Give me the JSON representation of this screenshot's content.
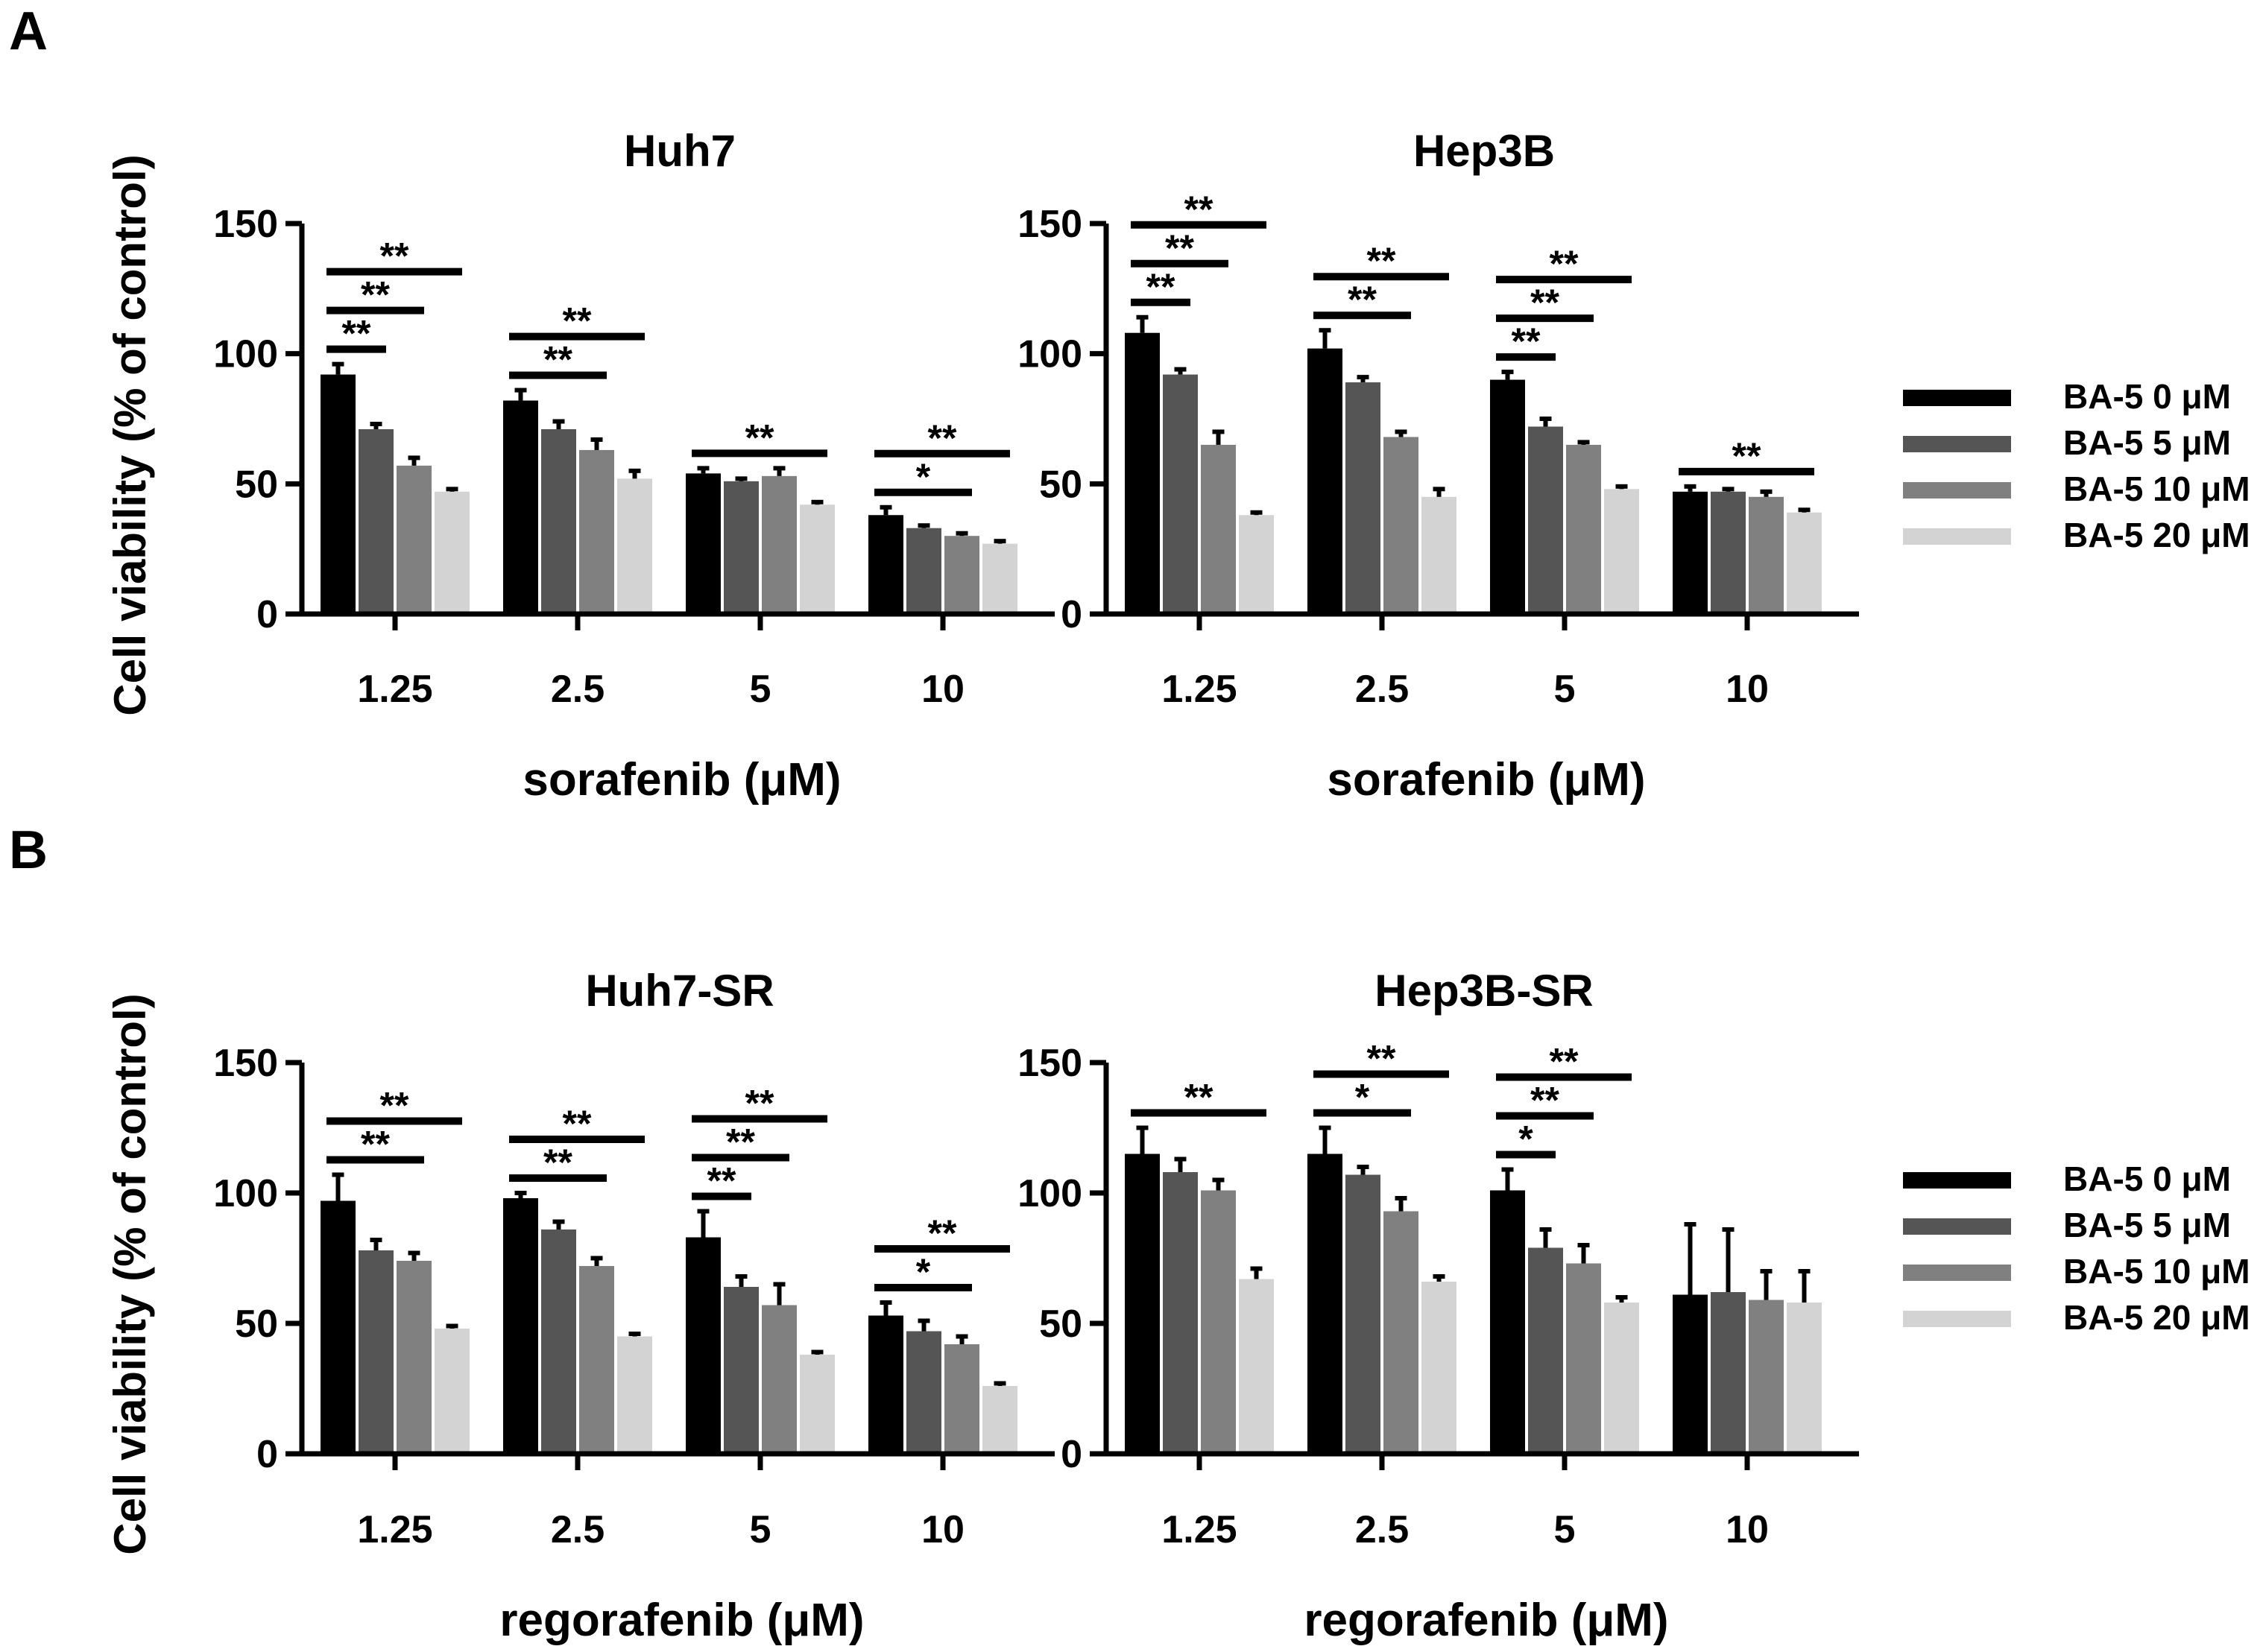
{
  "figure": {
    "panels": [
      {
        "label": "A"
      },
      {
        "label": "B"
      }
    ],
    "ylabel": "Cell viability (% of control)",
    "legend": [
      {
        "name": "BA-5 0 μM",
        "color": "#000000"
      },
      {
        "name": "BA-5 5 μM",
        "color": "#555555"
      },
      {
        "name": "BA-5 10 μM",
        "color": "#808080"
      },
      {
        "name": "BA-5 20 μM",
        "color": "#d3d3d3"
      }
    ]
  },
  "chart_data": [
    {
      "type": "bar",
      "panel": "A",
      "title": "Huh7",
      "xlabel": "sorafenib (μM)",
      "ylabel": "Cell viability (% of control)",
      "categories": [
        "1.25",
        "2.5",
        "5",
        "10"
      ],
      "ylim": [
        0,
        150
      ],
      "yticks": [
        0,
        50,
        100,
        150
      ],
      "series": [
        {
          "name": "BA-5 0 μM",
          "values": [
            92,
            82,
            54,
            38
          ],
          "errors": [
            4,
            4,
            2,
            3
          ]
        },
        {
          "name": "BA-5 5 μM",
          "values": [
            71,
            71,
            51,
            33
          ],
          "errors": [
            2,
            3,
            1,
            1
          ]
        },
        {
          "name": "BA-5 10 μM",
          "values": [
            57,
            63,
            53,
            30
          ],
          "errors": [
            3,
            4,
            3,
            1
          ]
        },
        {
          "name": "BA-5 20 μM",
          "values": [
            47,
            52,
            42,
            27
          ],
          "errors": [
            1,
            3,
            1,
            1
          ]
        }
      ],
      "significance": [
        {
          "category": "1.25",
          "to": "BA-5 5 μM",
          "label": "**"
        },
        {
          "category": "1.25",
          "to": "BA-5 10 μM",
          "label": "**"
        },
        {
          "category": "1.25",
          "to": "BA-5 20 μM",
          "label": "**"
        },
        {
          "category": "2.5",
          "to": "BA-5 10 μM",
          "label": "**"
        },
        {
          "category": "2.5",
          "to": "BA-5 20 μM",
          "label": "**"
        },
        {
          "category": "5",
          "to": "BA-5 20 μM",
          "label": "**"
        },
        {
          "category": "10",
          "to": "BA-5 10 μM",
          "label": "*"
        },
        {
          "category": "10",
          "to": "BA-5 20 μM",
          "label": "**"
        }
      ]
    },
    {
      "type": "bar",
      "panel": "A",
      "title": "Hep3B",
      "xlabel": "sorafenib (μM)",
      "ylabel": "",
      "categories": [
        "1.25",
        "2.5",
        "5",
        "10"
      ],
      "ylim": [
        0,
        150
      ],
      "yticks": [
        0,
        50,
        100,
        150
      ],
      "series": [
        {
          "name": "BA-5 0 μM",
          "values": [
            108,
            102,
            90,
            47
          ],
          "errors": [
            6,
            7,
            3,
            2
          ]
        },
        {
          "name": "BA-5 5 μM",
          "values": [
            92,
            89,
            72,
            47
          ],
          "errors": [
            2,
            2,
            3,
            1
          ]
        },
        {
          "name": "BA-5 10 μM",
          "values": [
            65,
            68,
            65,
            45
          ],
          "errors": [
            5,
            2,
            1,
            2
          ]
        },
        {
          "name": "BA-5 20 μM",
          "values": [
            38,
            45,
            48,
            39
          ],
          "errors": [
            1,
            3,
            1,
            1
          ]
        }
      ],
      "significance": [
        {
          "category": "1.25",
          "to": "BA-5 5 μM",
          "label": "**"
        },
        {
          "category": "1.25",
          "to": "BA-5 10 μM",
          "label": "**"
        },
        {
          "category": "1.25",
          "to": "BA-5 20 μM",
          "label": "**"
        },
        {
          "category": "2.5",
          "to": "BA-5 10 μM",
          "label": "**"
        },
        {
          "category": "2.5",
          "to": "BA-5 20 μM",
          "label": "**"
        },
        {
          "category": "5",
          "to": "BA-5 5 μM",
          "label": "**"
        },
        {
          "category": "5",
          "to": "BA-5 10 μM",
          "label": "**"
        },
        {
          "category": "5",
          "to": "BA-5 20 μM",
          "label": "**"
        },
        {
          "category": "10",
          "to": "BA-5 20 μM",
          "label": "**"
        }
      ]
    },
    {
      "type": "bar",
      "panel": "B",
      "title": "Huh7-SR",
      "xlabel": "regorafenib (μM)",
      "ylabel": "Cell viability (% of control)",
      "categories": [
        "1.25",
        "2.5",
        "5",
        "10"
      ],
      "ylim": [
        0,
        150
      ],
      "yticks": [
        0,
        50,
        100,
        150
      ],
      "series": [
        {
          "name": "BA-5 0 μM",
          "values": [
            97,
            98,
            83,
            53
          ],
          "errors": [
            10,
            2,
            10,
            5
          ]
        },
        {
          "name": "BA-5 5 μM",
          "values": [
            78,
            86,
            64,
            47
          ],
          "errors": [
            4,
            3,
            4,
            4
          ]
        },
        {
          "name": "BA-5 10 μM",
          "values": [
            74,
            72,
            57,
            42
          ],
          "errors": [
            3,
            3,
            8,
            3
          ]
        },
        {
          "name": "BA-5 20 μM",
          "values": [
            48,
            45,
            38,
            26
          ],
          "errors": [
            1,
            1,
            1,
            1
          ]
        }
      ],
      "significance": [
        {
          "category": "1.25",
          "to": "BA-5 10 μM",
          "label": "**"
        },
        {
          "category": "1.25",
          "to": "BA-5 20 μM",
          "label": "**"
        },
        {
          "category": "2.5",
          "to": "BA-5 10 μM",
          "label": "**"
        },
        {
          "category": "2.5",
          "to": "BA-5 20 μM",
          "label": "**"
        },
        {
          "category": "5",
          "to": "BA-5 5 μM",
          "label": "**"
        },
        {
          "category": "5",
          "to": "BA-5 10 μM",
          "label": "**"
        },
        {
          "category": "5",
          "to": "BA-5 20 μM",
          "label": "**"
        },
        {
          "category": "10",
          "to": "BA-5 10 μM",
          "label": "*"
        },
        {
          "category": "10",
          "to": "BA-5 20 μM",
          "label": "**"
        }
      ]
    },
    {
      "type": "bar",
      "panel": "B",
      "title": "Hep3B-SR",
      "xlabel": "regorafenib (μM)",
      "ylabel": "",
      "categories": [
        "1.25",
        "2.5",
        "5",
        "10"
      ],
      "ylim": [
        0,
        150
      ],
      "yticks": [
        0,
        50,
        100,
        150
      ],
      "series": [
        {
          "name": "BA-5 0 μM",
          "values": [
            115,
            115,
            101,
            61
          ],
          "errors": [
            10,
            10,
            8,
            27
          ]
        },
        {
          "name": "BA-5 5 μM",
          "values": [
            108,
            107,
            79,
            62
          ],
          "errors": [
            5,
            3,
            7,
            24
          ]
        },
        {
          "name": "BA-5 10 μM",
          "values": [
            101,
            93,
            73,
            59
          ],
          "errors": [
            4,
            5,
            7,
            11
          ]
        },
        {
          "name": "BA-5 20 μM",
          "values": [
            67,
            66,
            58,
            58
          ],
          "errors": [
            4,
            2,
            2,
            12
          ]
        }
      ],
      "significance": [
        {
          "category": "1.25",
          "to": "BA-5 20 μM",
          "label": "**"
        },
        {
          "category": "2.5",
          "to": "BA-5 10 μM",
          "label": "*"
        },
        {
          "category": "2.5",
          "to": "BA-5 20 μM",
          "label": "**"
        },
        {
          "category": "5",
          "to": "BA-5 5 μM",
          "label": "*"
        },
        {
          "category": "5",
          "to": "BA-5 10 μM",
          "label": "**"
        },
        {
          "category": "5",
          "to": "BA-5 20 μM",
          "label": "**"
        }
      ]
    }
  ]
}
